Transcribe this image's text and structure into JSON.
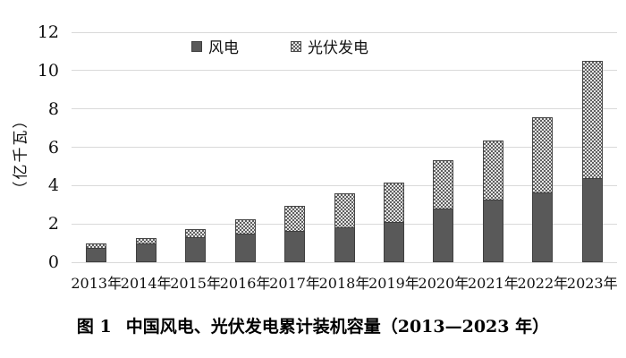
{
  "figure": {
    "caption_label": "图 1",
    "caption_text": "中国风电、光伏发电累计装机容量（2013—2023 年）"
  },
  "chart_data": {
    "type": "bar",
    "stacked": true,
    "title": "",
    "y_axis_title": "（亿千瓦）",
    "categories": [
      "2013年",
      "2014年",
      "2015年",
      "2016年",
      "2017年",
      "2018年",
      "2019年",
      "2020年",
      "2021年",
      "2022年",
      "2023年"
    ],
    "series": [
      {
        "name": "风电",
        "style": "solid",
        "color": "#595959",
        "values": [
          0.77,
          0.96,
          1.31,
          1.49,
          1.64,
          1.84,
          2.1,
          2.81,
          3.28,
          3.65,
          4.41
        ]
      },
      {
        "name": "光伏发电",
        "style": "checker-pattern",
        "pattern_fg": "#5f5f5f",
        "pattern_bg": "#e3e3e3",
        "values": [
          0.19,
          0.28,
          0.43,
          0.77,
          1.3,
          1.74,
          2.04,
          2.53,
          3.06,
          3.93,
          6.09
        ]
      }
    ],
    "totals": [
      0.96,
      1.24,
      1.74,
      2.26,
      2.94,
      3.58,
      4.14,
      5.34,
      6.34,
      7.58,
      10.5
    ],
    "y_ticks": [
      0,
      2,
      4,
      6,
      8,
      10,
      12
    ],
    "ylim": [
      0,
      12
    ],
    "grid": true,
    "gridline_color": "#d9d9d9",
    "legend_position": "top-center"
  }
}
